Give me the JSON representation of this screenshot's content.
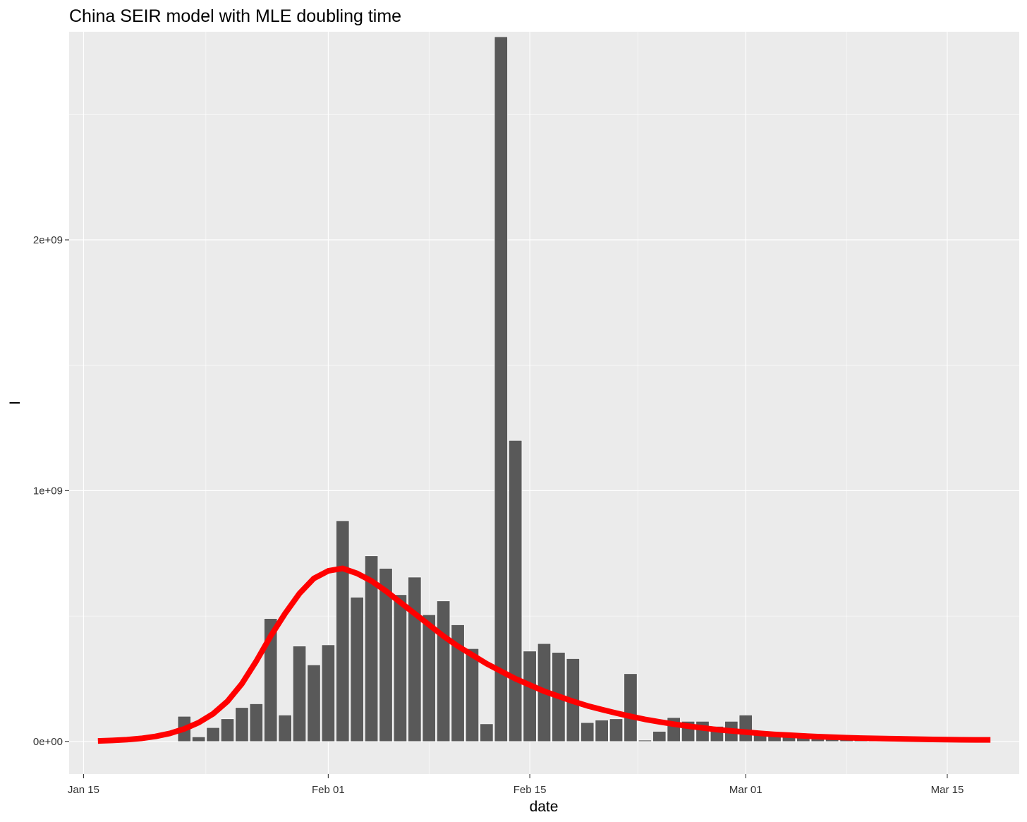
{
  "chart_data": {
    "type": "bar",
    "title": "China SEIR model with MLE doubling time",
    "xlabel": "date",
    "ylabel": "I",
    "grid": true,
    "legend": "none",
    "colors": {
      "panel": "#EBEBEB",
      "grid": "#FFFFFF",
      "bar": "#595959",
      "bar_outline": "#FFFFFF",
      "curve": "#FF0000",
      "tick_text": "#333333",
      "tick_mark": "#333333"
    },
    "xlim": [
      "2020-01-14",
      "2020-03-20"
    ],
    "ylim": [
      -130000000,
      2830000000
    ],
    "x_ticks": [
      {
        "date": "2020-01-15",
        "label": "Jan 15"
      },
      {
        "date": "2020-02-01",
        "label": "Feb 01"
      },
      {
        "date": "2020-02-15",
        "label": "Feb 15"
      },
      {
        "date": "2020-03-01",
        "label": "Mar 01"
      },
      {
        "date": "2020-03-15",
        "label": "Mar 15"
      }
    ],
    "y_ticks": [
      {
        "value": 0,
        "label": "0e+00"
      },
      {
        "value": 1000000000,
        "label": "1e+09"
      },
      {
        "value": 2000000000,
        "label": "2e+09"
      }
    ],
    "bars": {
      "dates": [
        "2020-01-22",
        "2020-01-23",
        "2020-01-24",
        "2020-01-25",
        "2020-01-26",
        "2020-01-27",
        "2020-01-28",
        "2020-01-29",
        "2020-01-30",
        "2020-01-31",
        "2020-02-01",
        "2020-02-02",
        "2020-02-03",
        "2020-02-04",
        "2020-02-05",
        "2020-02-06",
        "2020-02-07",
        "2020-02-08",
        "2020-02-09",
        "2020-02-10",
        "2020-02-11",
        "2020-02-12",
        "2020-02-13",
        "2020-02-14",
        "2020-02-15",
        "2020-02-16",
        "2020-02-17",
        "2020-02-18",
        "2020-02-19",
        "2020-02-20",
        "2020-02-21",
        "2020-02-22",
        "2020-02-23",
        "2020-02-24",
        "2020-02-25",
        "2020-02-26",
        "2020-02-27",
        "2020-02-28",
        "2020-02-29",
        "2020-03-01",
        "2020-03-02",
        "2020-03-03",
        "2020-03-04",
        "2020-03-05",
        "2020-03-06",
        "2020-03-07",
        "2020-03-08",
        "2020-03-09",
        "2020-03-10",
        "2020-03-11",
        "2020-03-12",
        "2020-03-13",
        "2020-03-14"
      ],
      "values": [
        100000000,
        18000000,
        55000000,
        90000000,
        135000000,
        150000000,
        490000000,
        105000000,
        380000000,
        305000000,
        385000000,
        880000000,
        575000000,
        740000000,
        690000000,
        585000000,
        655000000,
        505000000,
        560000000,
        465000000,
        370000000,
        70000000,
        2810000000,
        1200000000,
        360000000,
        390000000,
        355000000,
        330000000,
        75000000,
        85000000,
        90000000,
        270000000,
        5000000,
        40000000,
        95000000,
        80000000,
        80000000,
        60000000,
        80000000,
        105000000,
        35000000,
        22000000,
        22000000,
        30000000,
        28000000,
        15000000,
        10000000,
        7000000,
        5000000,
        5000000,
        2000000,
        2000000,
        6000000
      ]
    },
    "series": [
      {
        "type": "line",
        "dates": [
          "2020-01-16",
          "2020-01-17",
          "2020-01-18",
          "2020-01-19",
          "2020-01-20",
          "2020-01-21",
          "2020-01-22",
          "2020-01-23",
          "2020-01-24",
          "2020-01-25",
          "2020-01-26",
          "2020-01-27",
          "2020-01-28",
          "2020-01-29",
          "2020-01-30",
          "2020-01-31",
          "2020-02-01",
          "2020-02-02",
          "2020-02-03",
          "2020-02-04",
          "2020-02-05",
          "2020-02-06",
          "2020-02-07",
          "2020-02-08",
          "2020-02-09",
          "2020-02-10",
          "2020-02-11",
          "2020-02-12",
          "2020-02-13",
          "2020-02-14",
          "2020-02-15",
          "2020-02-16",
          "2020-02-17",
          "2020-02-18",
          "2020-02-19",
          "2020-02-20",
          "2020-02-21",
          "2020-02-22",
          "2020-02-23",
          "2020-02-24",
          "2020-02-25",
          "2020-02-26",
          "2020-02-27",
          "2020-02-28",
          "2020-02-29",
          "2020-03-01",
          "2020-03-02",
          "2020-03-03",
          "2020-03-04",
          "2020-03-05",
          "2020-03-06",
          "2020-03-07",
          "2020-03-08",
          "2020-03-09",
          "2020-03-10",
          "2020-03-11",
          "2020-03-12",
          "2020-03-13",
          "2020-03-14",
          "2020-03-15",
          "2020-03-16",
          "2020-03-17",
          "2020-03-18"
        ],
        "values": [
          2000000,
          4000000,
          7000000,
          12000000,
          20000000,
          32000000,
          50000000,
          75000000,
          110000000,
          160000000,
          230000000,
          320000000,
          420000000,
          510000000,
          590000000,
          650000000,
          680000000,
          690000000,
          670000000,
          640000000,
          600000000,
          555000000,
          510000000,
          465000000,
          420000000,
          380000000,
          345000000,
          310000000,
          280000000,
          250000000,
          225000000,
          200000000,
          180000000,
          160000000,
          142000000,
          127000000,
          113000000,
          100000000,
          88000000,
          78000000,
          69000000,
          61000000,
          54000000,
          47000000,
          42000000,
          37000000,
          32000000,
          28000000,
          25000000,
          22000000,
          19000000,
          17000000,
          15000000,
          13000000,
          12000000,
          11000000,
          10000000,
          9000000,
          8000000,
          7000000,
          6500000,
          6000000,
          6000000
        ]
      }
    ]
  }
}
